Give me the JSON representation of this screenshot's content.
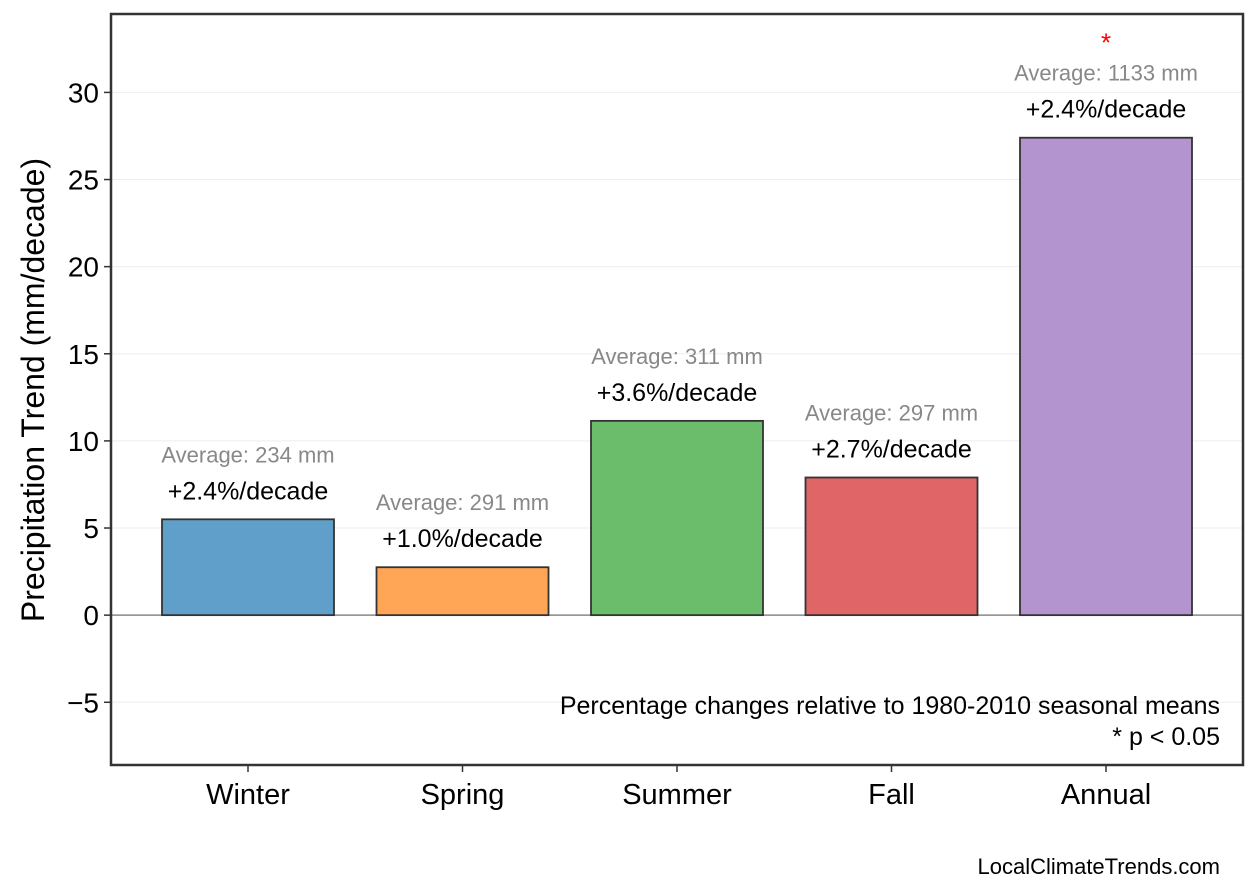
{
  "chart_data": {
    "type": "bar",
    "title": "",
    "xlabel": "",
    "ylabel": "Precipitation Trend (mm/decade)",
    "categories": [
      "Winter",
      "Spring",
      "Summer",
      "Fall",
      "Annual"
    ],
    "values": [
      5.5,
      2.75,
      11.15,
      7.9,
      27.4
    ],
    "percent_labels": [
      "+2.4%/decade",
      "+1.0%/decade",
      "+3.6%/decade",
      "+2.7%/decade",
      "+2.4%/decade"
    ],
    "average_labels": [
      "Average: 234 mm",
      "Average: 291 mm",
      "Average: 311 mm",
      "Average: 297 mm",
      "Average: 1133 mm"
    ],
    "significant": [
      false,
      false,
      false,
      false,
      true
    ],
    "significance_marker": "*",
    "colors": [
      "#5f9fca",
      "#ffa556",
      "#6bbd6b",
      "#e06567",
      "#b394cf"
    ],
    "significance_color": "#ff0000",
    "ylim": [
      -8.6,
      34.5
    ],
    "yticks": [
      -5,
      0,
      5,
      10,
      15,
      20,
      25,
      30
    ],
    "ytick_labels": [
      "−5",
      "0",
      "5",
      "10",
      "15",
      "20",
      "25",
      "30"
    ],
    "grid": true,
    "annotation_lines": [
      "Percentage changes relative to 1980-2010 seasonal means",
      "* p < 0.05"
    ]
  },
  "credit": "LocalClimateTrends.com"
}
